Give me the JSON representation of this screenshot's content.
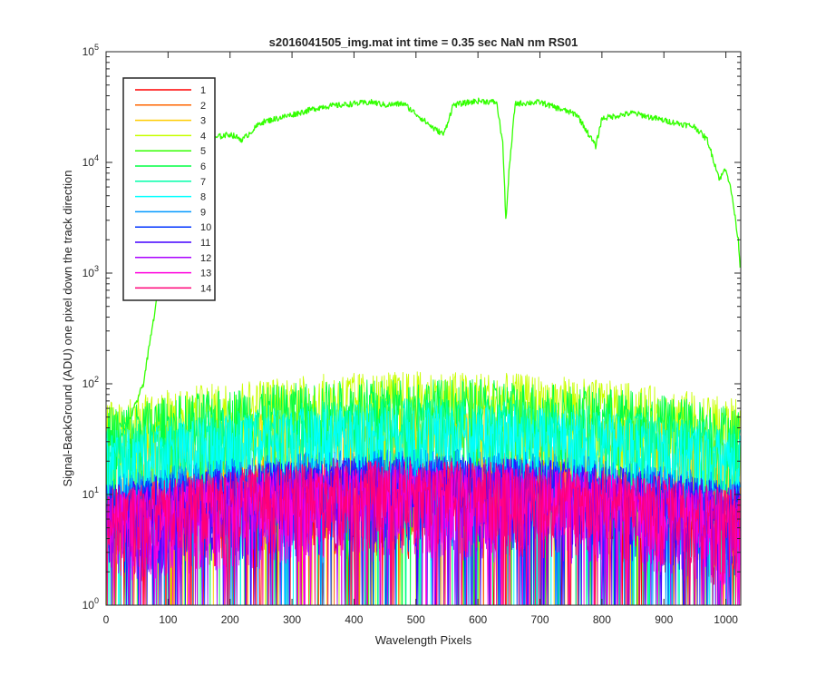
{
  "chart_data": {
    "type": "line",
    "title": "s2016041505_img.mat int time = 0.35 sec  NaN nm RS01",
    "xlabel": "Wavelength Pixels",
    "ylabel": "Signal-BackGround (ADU) one pixel down the track direction",
    "xlim": [
      0,
      1024
    ],
    "ylim": [
      1,
      100000
    ],
    "yscale": "log",
    "grid": false,
    "legend_position": "top-left",
    "x_ticks": [
      0,
      100,
      200,
      300,
      400,
      500,
      600,
      700,
      800,
      900,
      1000
    ],
    "y_ticks": [
      {
        "base": "10",
        "exp": "0",
        "value": 1
      },
      {
        "base": "10",
        "exp": "1",
        "value": 10
      },
      {
        "base": "10",
        "exp": "2",
        "value": 100
      },
      {
        "base": "10",
        "exp": "3",
        "value": 1000
      },
      {
        "base": "10",
        "exp": "4",
        "value": 10000
      },
      {
        "base": "10",
        "exp": "5",
        "value": 100000
      }
    ],
    "series": [
      {
        "name": "1",
        "color": "#ff0000",
        "level": 10
      },
      {
        "name": "2",
        "color": "#ff6600",
        "level": 14
      },
      {
        "name": "3",
        "color": "#ffcc00",
        "level": 35
      },
      {
        "name": "4",
        "color": "#c8ff00",
        "level": 70
      },
      {
        "name": "5",
        "color": "#33ff00",
        "level": 80,
        "peak_x": [
          0,
          20,
          40,
          60,
          80,
          100,
          150,
          180,
          200,
          220,
          250,
          300,
          350,
          380,
          400,
          430,
          450,
          480,
          530,
          545,
          560,
          600,
          630,
          640,
          645,
          650,
          660,
          700,
          760,
          790,
          800,
          850,
          900,
          950,
          970,
          990,
          1000,
          1010,
          1020,
          1024
        ],
        "peak_y": [
          20,
          30,
          50,
          100,
          500,
          2200,
          12000,
          17000,
          18000,
          16000,
          23000,
          27000,
          32000,
          33000,
          34000,
          35000,
          33000,
          34000,
          20000,
          18000,
          33000,
          36000,
          35000,
          15000,
          3000,
          8000,
          34000,
          35000,
          27000,
          14000,
          25000,
          28000,
          24000,
          21000,
          16000,
          7000,
          9000,
          5000,
          2000,
          1000
        ]
      },
      {
        "name": "6",
        "color": "#00ff44",
        "level": 60
      },
      {
        "name": "7",
        "color": "#00ffaa",
        "level": 40
      },
      {
        "name": "8",
        "color": "#00ffff",
        "level": 35
      },
      {
        "name": "9",
        "color": "#0099ff",
        "level": 14
      },
      {
        "name": "10",
        "color": "#0033ff",
        "level": 12
      },
      {
        "name": "11",
        "color": "#4400ff",
        "level": 12
      },
      {
        "name": "12",
        "color": "#aa00ff",
        "level": 10
      },
      {
        "name": "13",
        "color": "#ff00dd",
        "level": 10
      },
      {
        "name": "14",
        "color": "#ff0077",
        "level": 11
      }
    ]
  }
}
